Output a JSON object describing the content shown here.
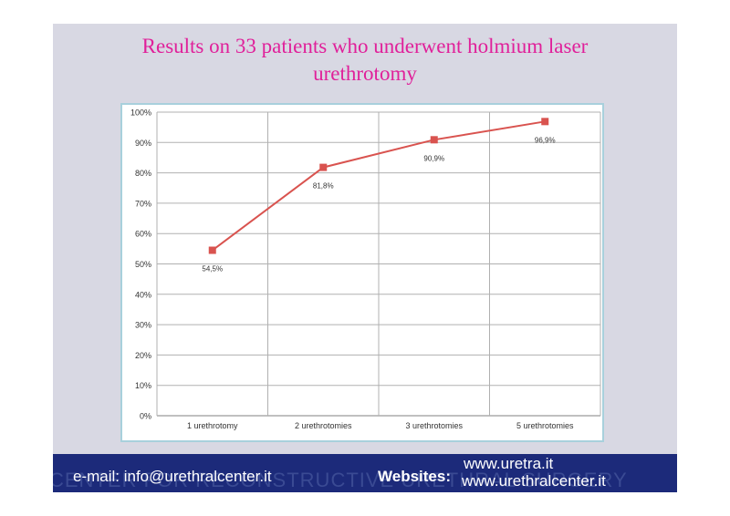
{
  "slide": {
    "title_line1": "Results on 33 patients who underwent holmium laser",
    "title_line2": "urethrotomy"
  },
  "footer": {
    "email": "e-mail: info@urethralcenter.it",
    "websites_label": "Websites:",
    "website_1": "www.uretra.it",
    "website_2": "www.urethralcenter.it",
    "watermark": "CENTER FOR RECONSTRUCTIVE URETHRAL SURGERY"
  },
  "colors": {
    "title": "#e0209a",
    "line": "#d9534f",
    "chart_bg": "#ffffff",
    "chart_border": "#a8d0dc",
    "footer": "#1c2a7a"
  },
  "chart_data": {
    "type": "line",
    "title": "",
    "xlabel": "",
    "ylabel": "",
    "categories": [
      "1 urethrotomy",
      "2 urethrotomies",
      "3 urethrotomies",
      "5 urethrotomies"
    ],
    "series": [
      {
        "values": [
          54.5,
          81.8,
          90.9,
          96.9
        ],
        "labels": [
          "54,5%",
          "81,8%",
          "90,9%",
          "96,9%"
        ]
      }
    ],
    "ylim": [
      0,
      100
    ],
    "yticks": [
      "0%",
      "10%",
      "20%",
      "30%",
      "40%",
      "50%",
      "60%",
      "70%",
      "80%",
      "90%",
      "100%"
    ],
    "grid": true,
    "legend": "none",
    "marker": "square"
  }
}
